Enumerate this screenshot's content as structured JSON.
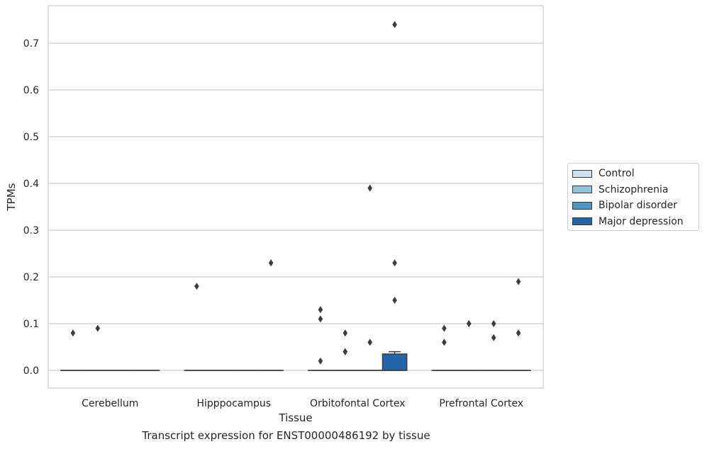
{
  "caption": "Transcript expression for ENST00000486192 by tissue",
  "legend": {
    "items": [
      {
        "label": "Control",
        "color": "#d0e1f2"
      },
      {
        "label": "Schizophrenia",
        "color": "#94c4df"
      },
      {
        "label": "Bipolar disorder",
        "color": "#4a98c9"
      },
      {
        "label": "Major depression",
        "color": "#2365a9"
      }
    ]
  },
  "chart_data": {
    "type": "box",
    "xlabel": "Tissue",
    "ylabel": "TPMs",
    "ylim": [
      -0.037,
      0.78
    ],
    "yticks": [
      0.0,
      0.1,
      0.2,
      0.3,
      0.4,
      0.5,
      0.6,
      0.7
    ],
    "ytick_labels": [
      "0.0",
      "0.1",
      "0.2",
      "0.3",
      "0.4",
      "0.5",
      "0.6",
      "0.7"
    ],
    "grid": "horizontal",
    "legend_position": "right",
    "categories": [
      "Cerebellum",
      "Hipppocampus",
      "Orbitofontal Cortex",
      "Prefrontal Cortex"
    ],
    "series": [
      {
        "name": "Control",
        "color": "#d0e1f2",
        "boxes": [
          {
            "q1": 0,
            "median": 0,
            "q3": 0,
            "whisker_low": 0,
            "whisker_high": 0,
            "outliers": [
              0.08
            ]
          },
          {
            "q1": 0,
            "median": 0,
            "q3": 0,
            "whisker_low": 0,
            "whisker_high": 0,
            "outliers": [
              0.18
            ]
          },
          {
            "q1": 0,
            "median": 0,
            "q3": 0,
            "whisker_low": 0,
            "whisker_high": 0,
            "outliers": [
              0.02,
              0.11,
              0.13
            ]
          },
          {
            "q1": 0,
            "median": 0,
            "q3": 0,
            "whisker_low": 0,
            "whisker_high": 0,
            "outliers": [
              0.06,
              0.09
            ]
          }
        ]
      },
      {
        "name": "Schizophrenia",
        "color": "#94c4df",
        "boxes": [
          {
            "q1": 0,
            "median": 0,
            "q3": 0,
            "whisker_low": 0,
            "whisker_high": 0,
            "outliers": [
              0.09
            ]
          },
          {
            "q1": 0,
            "median": 0,
            "q3": 0,
            "whisker_low": 0,
            "whisker_high": 0,
            "outliers": []
          },
          {
            "q1": 0,
            "median": 0,
            "q3": 0,
            "whisker_low": 0,
            "whisker_high": 0,
            "outliers": [
              0.04,
              0.04,
              0.08
            ]
          },
          {
            "q1": 0,
            "median": 0,
            "q3": 0,
            "whisker_low": 0,
            "whisker_high": 0,
            "outliers": [
              0.1,
              0.1
            ]
          }
        ]
      },
      {
        "name": "Bipolar disorder",
        "color": "#4a98c9",
        "boxes": [
          {
            "q1": 0,
            "median": 0,
            "q3": 0,
            "whisker_low": 0,
            "whisker_high": 0,
            "outliers": []
          },
          {
            "q1": 0,
            "median": 0,
            "q3": 0,
            "whisker_low": 0,
            "whisker_high": 0,
            "outliers": []
          },
          {
            "q1": 0,
            "median": 0,
            "q3": 0,
            "whisker_low": 0,
            "whisker_high": 0,
            "outliers": [
              0.06,
              0.39
            ]
          },
          {
            "q1": 0,
            "median": 0,
            "q3": 0,
            "whisker_low": 0,
            "whisker_high": 0,
            "outliers": [
              0.07,
              0.1
            ]
          }
        ]
      },
      {
        "name": "Major depression",
        "color": "#2365a9",
        "boxes": [
          {
            "q1": 0,
            "median": 0,
            "q3": 0,
            "whisker_low": 0,
            "whisker_high": 0,
            "outliers": []
          },
          {
            "q1": 0,
            "median": 0,
            "q3": 0,
            "whisker_low": 0,
            "whisker_high": 0,
            "outliers": [
              0.23
            ]
          },
          {
            "q1": 0,
            "median": 0,
            "q3": 0.035,
            "whisker_low": 0,
            "whisker_high": 0.04,
            "outliers": [
              0.15,
              0.23,
              0.74
            ]
          },
          {
            "q1": 0,
            "median": 0,
            "q3": 0,
            "whisker_low": 0,
            "whisker_high": 0,
            "outliers": [
              0.08,
              0.19
            ]
          }
        ]
      }
    ]
  }
}
